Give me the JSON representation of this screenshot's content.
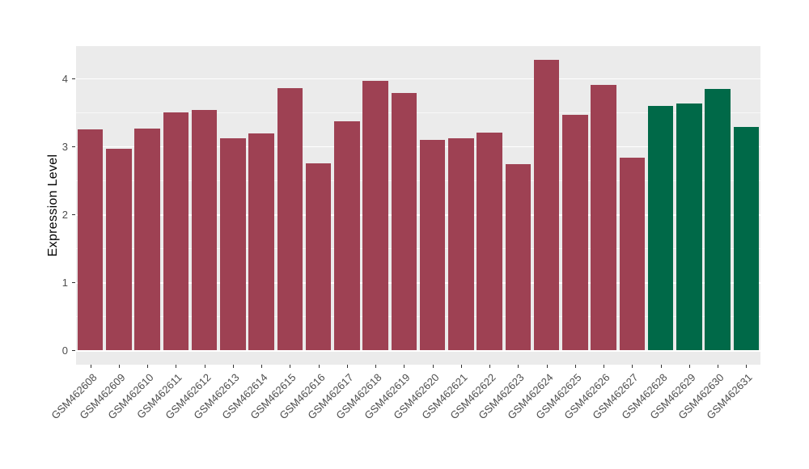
{
  "figure": {
    "background_color": "#ffffff",
    "panel_background_color": "#ebebeb",
    "gridline_color": "#ffffff",
    "axis_text_color": "#4d4d4d",
    "tick_mark_color": "#333333"
  },
  "chart_data": {
    "type": "bar",
    "title": "",
    "xlabel": "",
    "ylabel": "Expression Level",
    "categories": [
      "GSM462608",
      "GSM462609",
      "GSM462610",
      "GSM462611",
      "GSM462612",
      "GSM462613",
      "GSM462614",
      "GSM462615",
      "GSM462616",
      "GSM462617",
      "GSM462618",
      "GSM462619",
      "GSM462620",
      "GSM462621",
      "GSM462622",
      "GSM462623",
      "GSM462624",
      "GSM462625",
      "GSM462626",
      "GSM462627",
      "GSM462628",
      "GSM462629",
      "GSM462630",
      "GSM462631"
    ],
    "values": [
      3.25,
      2.97,
      3.26,
      3.5,
      3.54,
      3.12,
      3.19,
      3.86,
      2.75,
      3.37,
      3.96,
      3.78,
      3.1,
      3.12,
      3.2,
      2.74,
      4.27,
      3.46,
      3.9,
      2.83,
      3.6,
      3.63,
      3.85,
      3.29
    ],
    "bar_colors": [
      "#9e4153",
      "#9e4153",
      "#9e4153",
      "#9e4153",
      "#9e4153",
      "#9e4153",
      "#9e4153",
      "#9e4153",
      "#9e4153",
      "#9e4153",
      "#9e4153",
      "#9e4153",
      "#9e4153",
      "#9e4153",
      "#9e4153",
      "#9e4153",
      "#9e4153",
      "#9e4153",
      "#9e4153",
      "#9e4153",
      "#006948",
      "#006948",
      "#006948",
      "#006948"
    ],
    "color_groups": {
      "red": "#9e4153",
      "green": "#006948"
    },
    "yticks": [
      0,
      1,
      2,
      3,
      4
    ],
    "ytick_labels": [
      "0",
      "1",
      "2",
      "3",
      "4"
    ],
    "minor_yticks": [
      0.5,
      1.5,
      2.5,
      3.5
    ],
    "ylim": [
      -0.214,
      4.476
    ],
    "bar_width_fraction": 0.9,
    "grid": "on",
    "legend_position": "none",
    "x_label_angle_degrees": 45
  }
}
